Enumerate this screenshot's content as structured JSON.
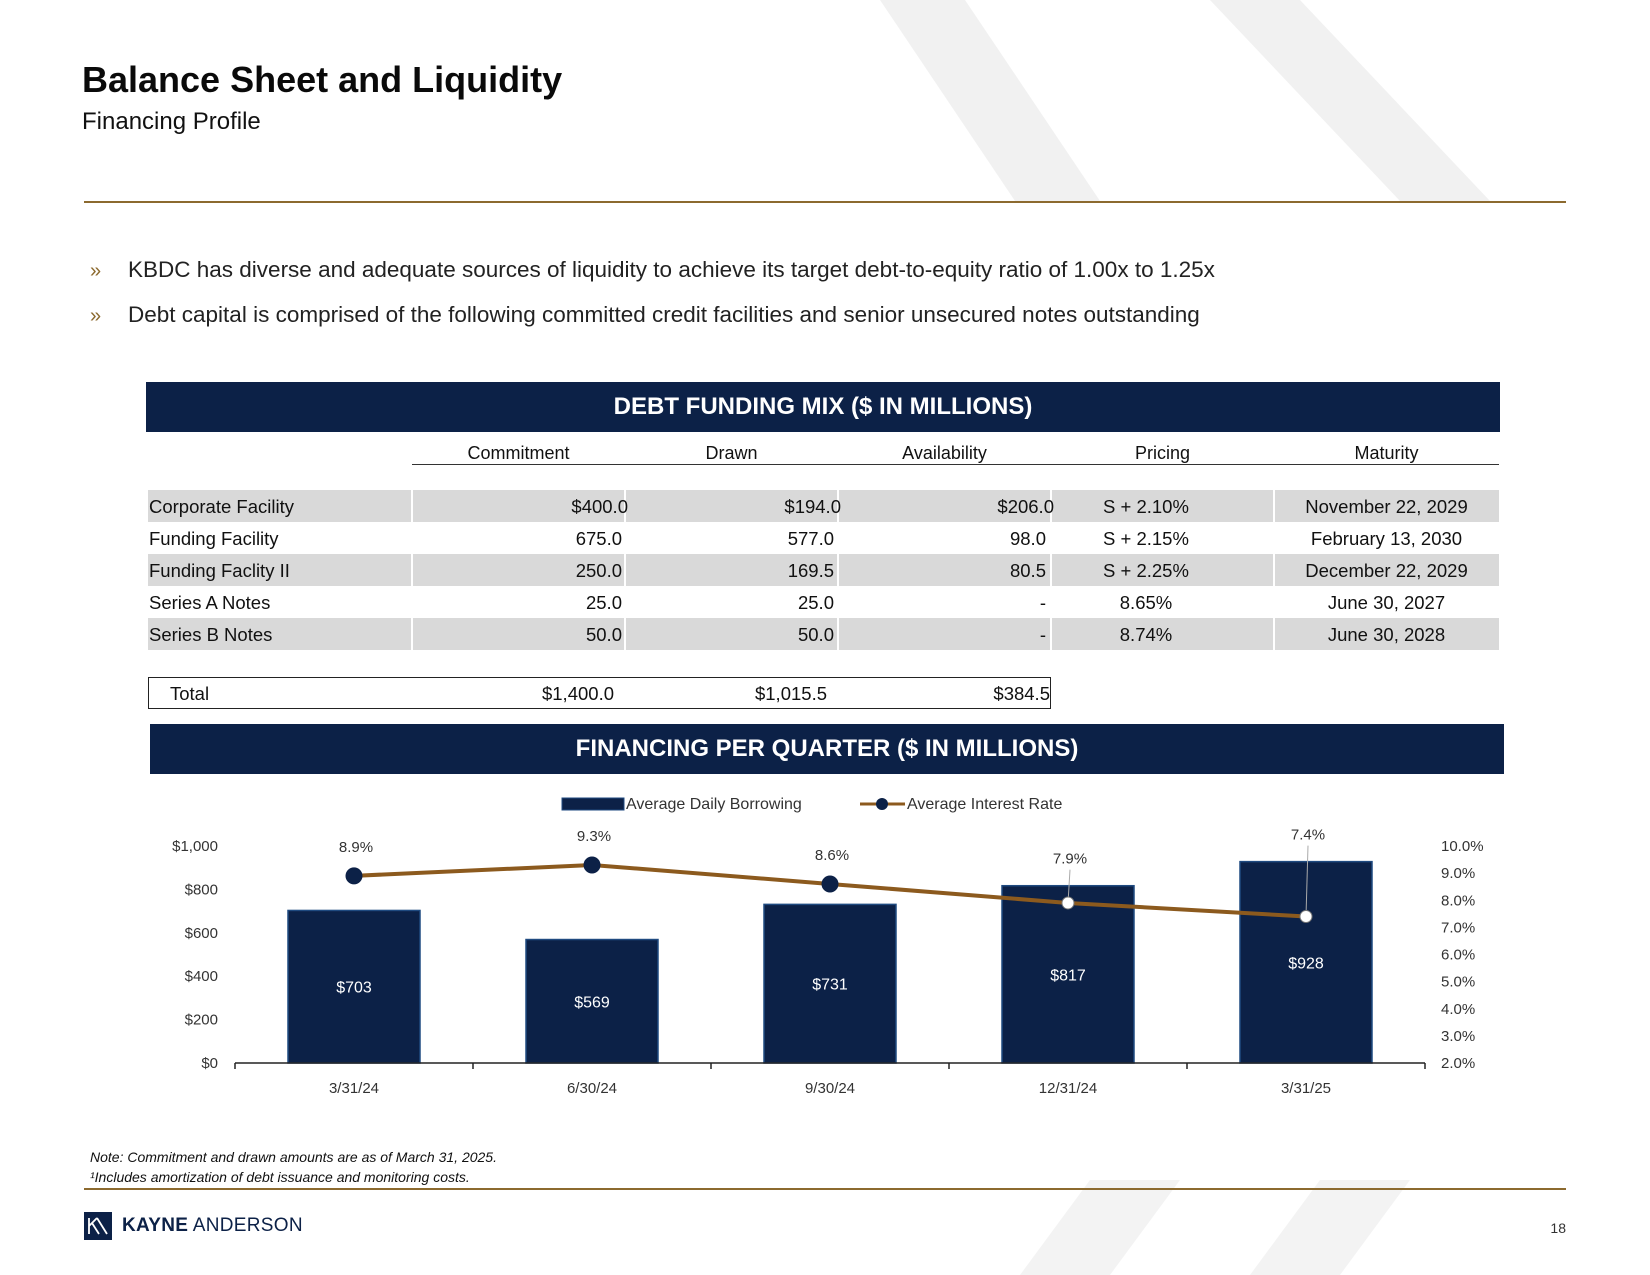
{
  "header": {
    "title": "Balance Sheet and Liquidity",
    "subtitle": "Financing Profile"
  },
  "bullets": [
    "KBDC has diverse and adequate sources of liquidity to achieve its target debt-to-equity ratio of 1.00x to 1.25x",
    "Debt capital is comprised of the following committed credit facilities and senior unsecured notes outstanding"
  ],
  "bullet_marker": "»",
  "debt_table": {
    "title": "DEBT FUNDING MIX ($ IN MILLIONS)",
    "columns": [
      "Commitment",
      "Drawn",
      "Availability",
      "Pricing",
      "Maturity"
    ],
    "rows": [
      {
        "name": "Corporate Facility",
        "commitment": "$400.0",
        "drawn": "$194.0",
        "availability": "$206.0",
        "pricing": "S + 2.10%",
        "maturity": "November 22, 2029"
      },
      {
        "name": "Funding Facility",
        "commitment": "675.0",
        "drawn": "577.0",
        "availability": "98.0",
        "pricing": "S + 2.15%",
        "maturity": "February 13, 2030"
      },
      {
        "name": "Funding Faclity II",
        "commitment": "250.0",
        "drawn": "169.5",
        "availability": "80.5",
        "pricing": "S + 2.25%",
        "maturity": "December 22, 2029"
      },
      {
        "name": "Series A Notes",
        "commitment": "25.0",
        "drawn": "25.0",
        "availability": "-",
        "pricing": "8.65%",
        "maturity": "June 30, 2027"
      },
      {
        "name": "Series B Notes",
        "commitment": "50.0",
        "drawn": "50.0",
        "availability": "-",
        "pricing": "8.74%",
        "maturity": "June 30, 2028"
      }
    ],
    "total": {
      "name": "Total",
      "commitment": "$1,400.0",
      "drawn": "$1,015.5",
      "availability": "$384.5"
    }
  },
  "chart_banner": "FINANCING PER QUARTER ($ IN MILLIONS)",
  "chart_data": {
    "type": "bar",
    "title": "FINANCING PER QUARTER ($ IN MILLIONS)",
    "categories": [
      "3/31/24",
      "6/30/24",
      "9/30/24",
      "12/31/24",
      "3/31/25"
    ],
    "series": [
      {
        "name": "Average Daily Borrowing",
        "type": "bar",
        "axis": "left",
        "values": [
          703,
          569,
          731,
          817,
          928
        ],
        "labels": [
          "$703",
          "$569",
          "$731",
          "$817",
          "$928"
        ]
      },
      {
        "name": "Average Interest Rate",
        "type": "line",
        "axis": "right",
        "values": [
          8.9,
          9.3,
          8.6,
          7.9,
          7.4
        ],
        "labels": [
          "8.9%",
          "9.3%",
          "8.6%",
          "7.9%",
          "7.4%"
        ]
      }
    ],
    "y_left": {
      "min": 0,
      "max": 1000,
      "ticks": [
        "$0",
        "$200",
        "$400",
        "$600",
        "$800",
        "$1,000"
      ]
    },
    "y_right": {
      "min": 2.0,
      "max": 10.0,
      "ticks": [
        "2.0%",
        "3.0%",
        "4.0%",
        "5.0%",
        "6.0%",
        "7.0%",
        "8.0%",
        "9.0%",
        "10.0%"
      ]
    },
    "legend": "top-center",
    "grid": false
  },
  "notes": [
    "Note:  Commitment and drawn amounts are as of March 31, 2025.",
    "¹Includes amortization of debt issuance and monitoring costs."
  ],
  "footer": {
    "logo_bold": "KAYNE",
    "logo_light": " ANDERSON",
    "page_number": "18"
  },
  "colors": {
    "navy": "#0c2147",
    "gold": "#8c6a2f",
    "line": "#8c5a1e",
    "shade": "#d9d9d9"
  }
}
